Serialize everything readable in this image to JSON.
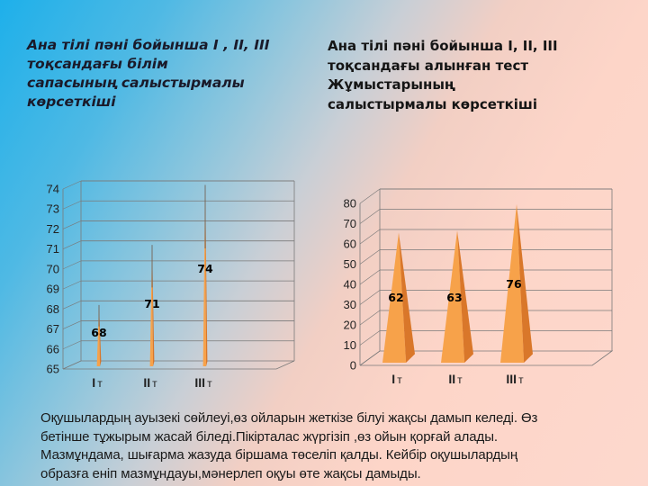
{
  "slide": {
    "left_title": "Ана тілі пәні бойынша I , II, III\nтоқсандағы   білім\n сапасының   салыстырмалы\n көрсеткіші",
    "right_title": "Ана тілі пәні бойынша I, II, III\n тоқсандағы алынған тест\nЖұмыстарының\n салыстырмалы көрсеткіші",
    "body_lines": [
      "Оқушылардың  ауызекі  сөйлеуі,өз ойларын жеткізе білуі жақсы дамып келеді. Өз",
      "бетінше тұжырым жасай біледі.Пікірталас жүргізіп ,өз ойын қорғай алады.",
      "Мазмұндама, шығарма жазуда біршама төселіп қалды. Кейбір оқушылардың",
      "образға еніп мазмұндауы,мәнерлеп оқуы өте жақсы  дамыды."
    ],
    "colors": {
      "pyramid_front": "#f7a24a",
      "pyramid_side": "#d9772a",
      "gridline": "#7a7a7a"
    }
  },
  "chart_data": [
    {
      "type": "bar",
      "style": "3d-pyramid",
      "title": "Ана тілі пәні бойынша I , II, III тоқсандағы білім сапасының салыстырмалы көрсеткіші",
      "categories": [
        "I т",
        "II т",
        "III т"
      ],
      "values": [
        68,
        71,
        74
      ],
      "data_labels": [
        "68",
        "71",
        "74"
      ],
      "xlabel": "",
      "ylabel": "",
      "ylim": [
        65,
        74
      ],
      "yticks": [
        "65",
        "66",
        "67",
        "68",
        "69",
        "70",
        "71",
        "72",
        "73",
        "74"
      ],
      "grid": true,
      "legend": "none"
    },
    {
      "type": "bar",
      "style": "3d-pyramid",
      "title": "Ана тілі пәні бойынша I, II, III тоқсандағы алынған тест Жұмыстарының салыстырмалы көрсеткіші",
      "categories": [
        "I т",
        "II т",
        "III т"
      ],
      "values": [
        62,
        63,
        76
      ],
      "data_labels": [
        "62",
        "63",
        "76"
      ],
      "xlabel": "",
      "ylabel": "",
      "ylim": [
        0,
        80
      ],
      "yticks": [
        "0",
        "10",
        "20",
        "30",
        "40",
        "50",
        "60",
        "70",
        "80"
      ],
      "grid": true,
      "legend": "none"
    }
  ]
}
